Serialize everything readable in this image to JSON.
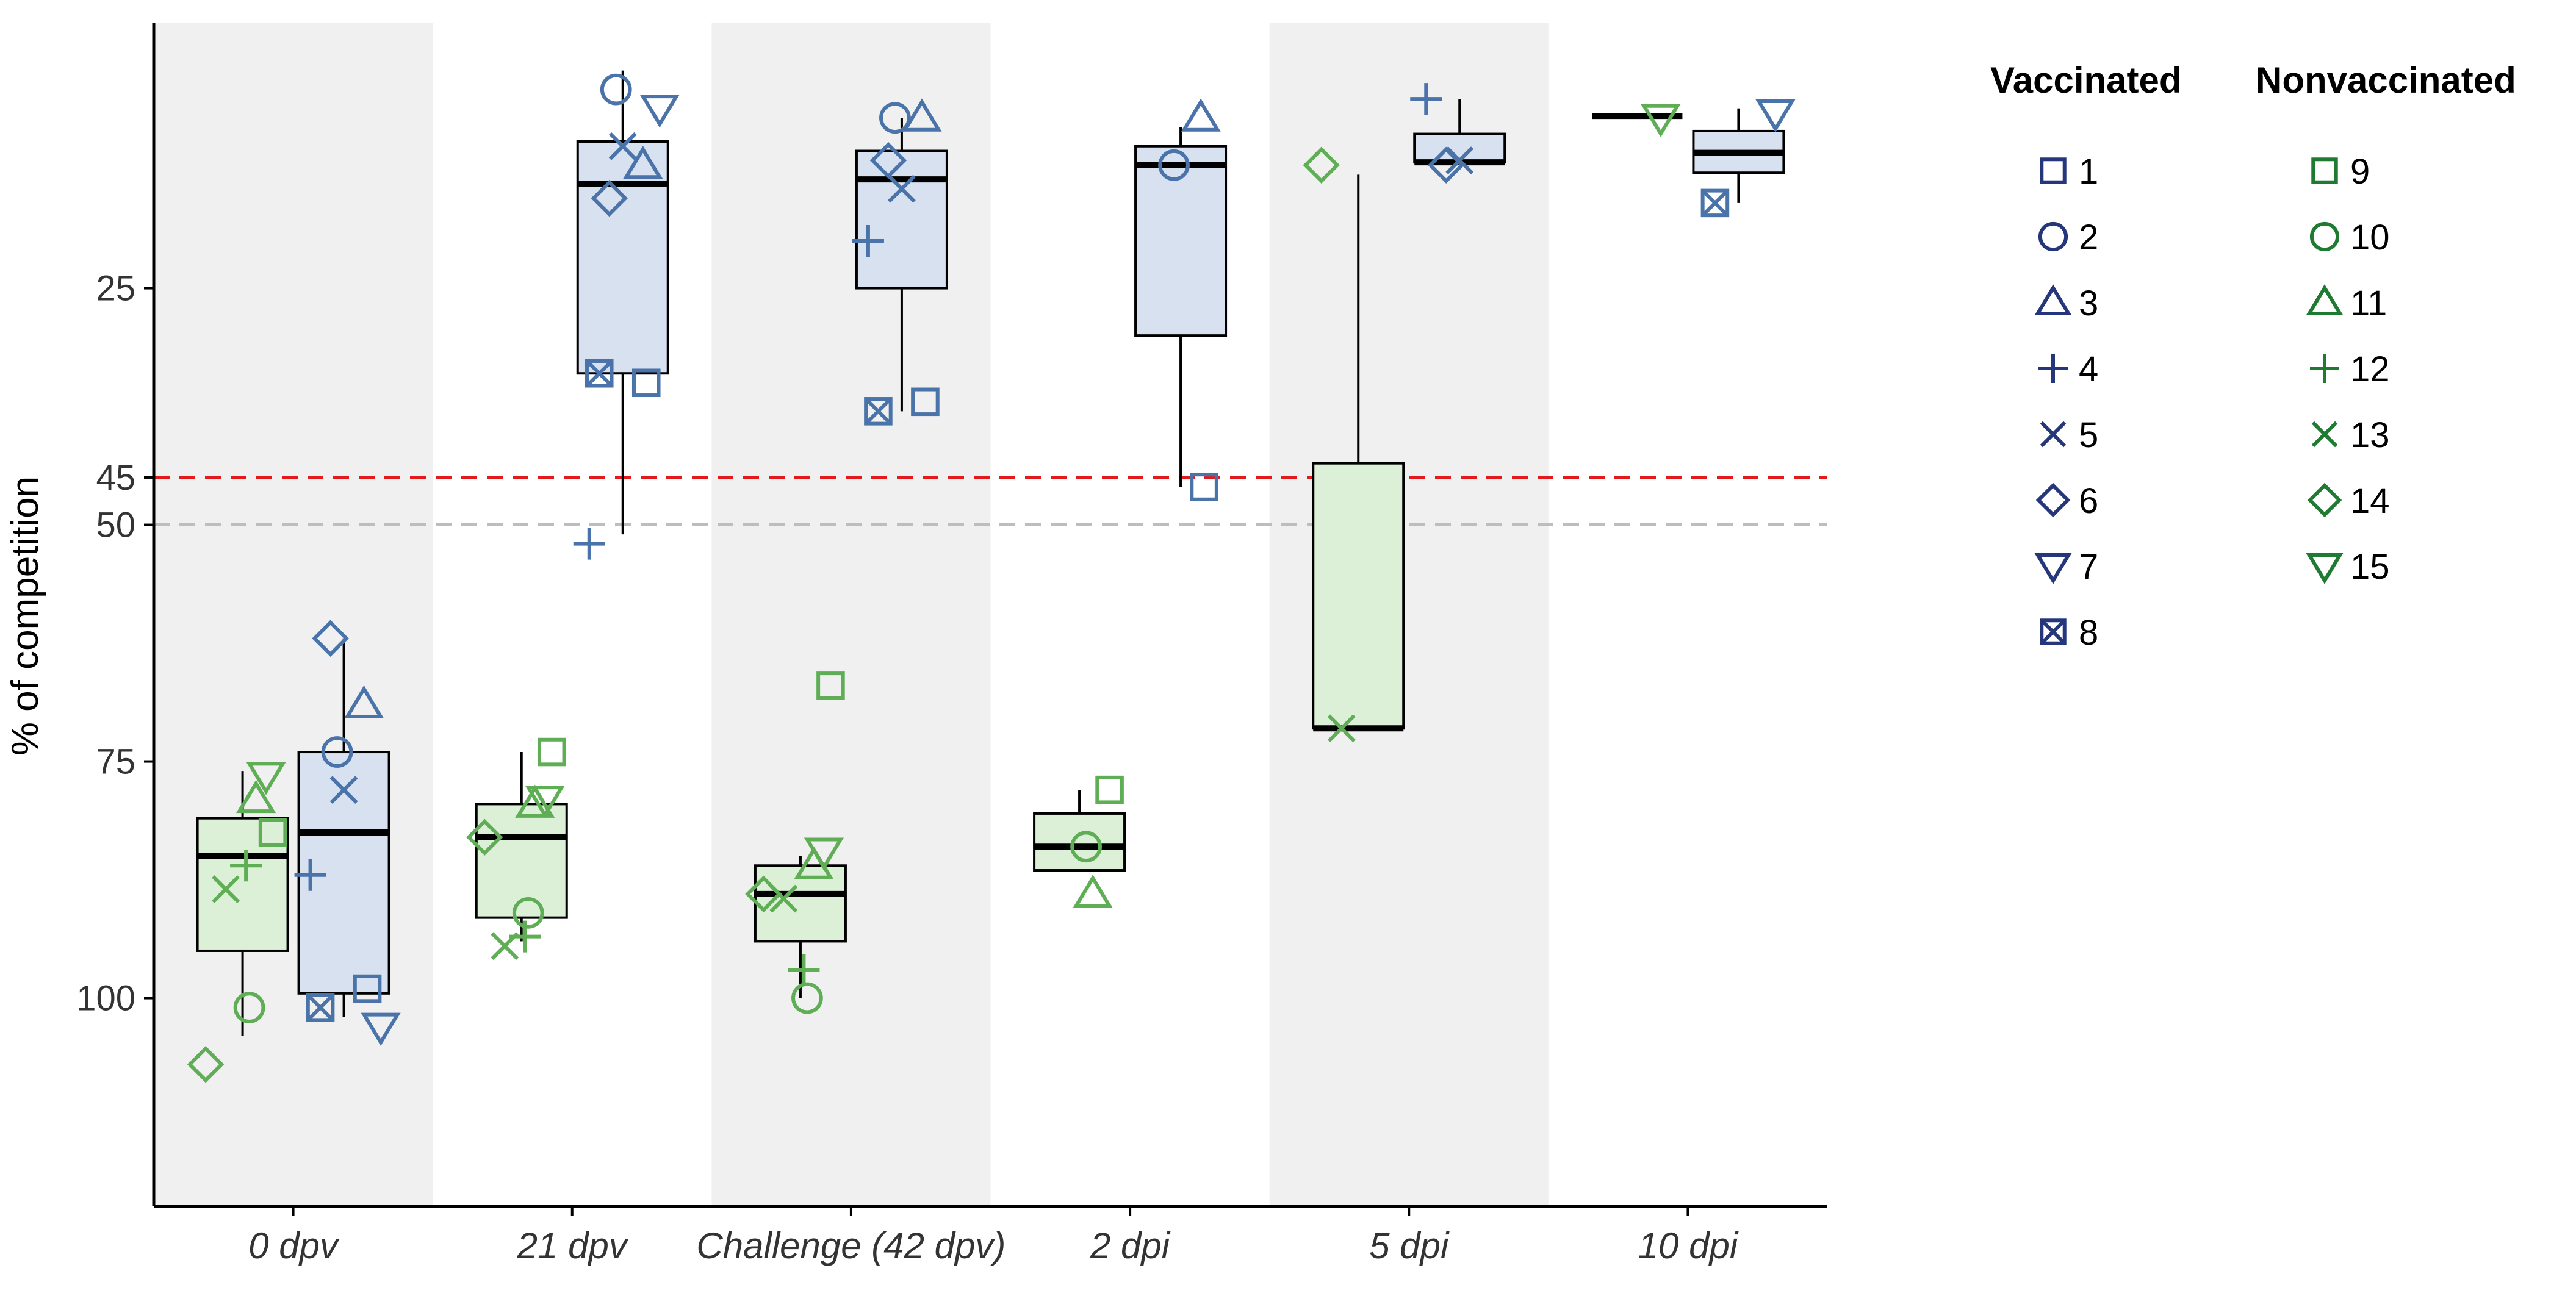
{
  "chart_data": {
    "type": "box",
    "title": "",
    "xlabel": "",
    "ylabel": "% of competition",
    "y_reversed": true,
    "ylim": [
      -3,
      122
    ],
    "yticks": [
      25,
      45,
      50,
      75,
      100
    ],
    "categories": [
      "0 dpv",
      "21 dpv",
      "Challenge (42 dpv)",
      "2 dpi",
      "5 dpi",
      "10 dpi"
    ],
    "shaded_categories": [
      0,
      2,
      4
    ],
    "reference_lines": [
      {
        "value": 45,
        "color": "#e31a1c",
        "style": "dashed"
      },
      {
        "value": 50,
        "color": "#bdbdbd",
        "style": "dashed"
      }
    ],
    "groups": [
      {
        "name": "Vaccinated",
        "color": "#4a73aa",
        "legend_color": "#25377a",
        "fill": "#d7e1ef"
      },
      {
        "name": "Nonvaccinated",
        "color": "#5fae55",
        "legend_color": "#1f7a32",
        "fill": "#dcefd7"
      }
    ],
    "legend": {
      "Vaccinated": [
        {
          "id": "1",
          "shape": "square"
        },
        {
          "id": "2",
          "shape": "circle"
        },
        {
          "id": "3",
          "shape": "triangle-up"
        },
        {
          "id": "4",
          "shape": "plus"
        },
        {
          "id": "5",
          "shape": "cross"
        },
        {
          "id": "6",
          "shape": "diamond"
        },
        {
          "id": "7",
          "shape": "triangle-down"
        },
        {
          "id": "8",
          "shape": "square-cross"
        }
      ],
      "Nonvaccinated": [
        {
          "id": "9",
          "shape": "square"
        },
        {
          "id": "10",
          "shape": "circle"
        },
        {
          "id": "11",
          "shape": "triangle-up"
        },
        {
          "id": "12",
          "shape": "plus"
        },
        {
          "id": "13",
          "shape": "cross"
        },
        {
          "id": "14",
          "shape": "diamond"
        },
        {
          "id": "15",
          "shape": "triangle-down"
        }
      ]
    },
    "boxes": [
      {
        "category": "0 dpv",
        "group": "Nonvaccinated",
        "q1": 81,
        "median": 85,
        "q3": 95,
        "whisker_low": 76,
        "whisker_high": 104
      },
      {
        "category": "0 dpv",
        "group": "Vaccinated",
        "q1": 74,
        "median": 82.5,
        "q3": 99.5,
        "whisker_low": 62,
        "whisker_high": 102
      },
      {
        "category": "21 dpv",
        "group": "Nonvaccinated",
        "q1": 79.5,
        "median": 83,
        "q3": 91.5,
        "whisker_low": 74,
        "whisker_high": 94
      },
      {
        "category": "21 dpv",
        "group": "Vaccinated",
        "q1": 9.5,
        "median": 14,
        "q3": 34,
        "whisker_low": 2,
        "whisker_high": 51
      },
      {
        "category": "Challenge (42 dpv)",
        "group": "Nonvaccinated",
        "q1": 86,
        "median": 89,
        "q3": 94,
        "whisker_low": 85,
        "whisker_high": 100
      },
      {
        "category": "Challenge (42 dpv)",
        "group": "Vaccinated",
        "q1": 10.5,
        "median": 13.5,
        "q3": 25,
        "whisker_low": 7,
        "whisker_high": 38
      },
      {
        "category": "2 dpi",
        "group": "Nonvaccinated",
        "q1": 80.5,
        "median": 84,
        "q3": 86.5,
        "whisker_low": 78,
        "whisker_high": 86.5
      },
      {
        "category": "2 dpi",
        "group": "Vaccinated",
        "q1": 10,
        "median": 12,
        "q3": 30,
        "whisker_low": 8,
        "whisker_high": 46
      },
      {
        "category": "5 dpi",
        "group": "Nonvaccinated",
        "q1": 43.5,
        "median": 71.5,
        "q3": 71.5,
        "whisker_low": 13,
        "whisker_high": 71.5
      },
      {
        "category": "5 dpi",
        "group": "Vaccinated",
        "q1": 8.7,
        "median": 11.7,
        "q3": 11.7,
        "whisker_low": 5,
        "whisker_high": 11.7
      },
      {
        "category": "10 dpi",
        "group": "Nonvaccinated",
        "q1": 6.8,
        "median": 6.8,
        "q3": 6.8,
        "whisker_low": 6.8,
        "whisker_high": 6.8
      },
      {
        "category": "10 dpi",
        "group": "Vaccinated",
        "q1": 8.4,
        "median": 10.7,
        "q3": 12.8,
        "whisker_low": 6,
        "whisker_high": 16
      }
    ],
    "points": [
      {
        "category": "0 dpv",
        "id": "9",
        "y": 82.5
      },
      {
        "category": "0 dpv",
        "id": "10",
        "y": 101
      },
      {
        "category": "0 dpv",
        "id": "11",
        "y": 79
      },
      {
        "category": "0 dpv",
        "id": "12",
        "y": 86
      },
      {
        "category": "0 dpv",
        "id": "13",
        "y": 88.5
      },
      {
        "category": "0 dpv",
        "id": "14",
        "y": 107
      },
      {
        "category": "0 dpv",
        "id": "15",
        "y": 76.5
      },
      {
        "category": "0 dpv",
        "id": "1",
        "y": 99
      },
      {
        "category": "0 dpv",
        "id": "2",
        "y": 74
      },
      {
        "category": "0 dpv",
        "id": "3",
        "y": 69
      },
      {
        "category": "0 dpv",
        "id": "4",
        "y": 87
      },
      {
        "category": "0 dpv",
        "id": "5",
        "y": 78
      },
      {
        "category": "0 dpv",
        "id": "6",
        "y": 62
      },
      {
        "category": "0 dpv",
        "id": "7",
        "y": 103
      },
      {
        "category": "0 dpv",
        "id": "8",
        "y": 101
      },
      {
        "category": "21 dpv",
        "id": "9",
        "y": 74
      },
      {
        "category": "21 dpv",
        "id": "10",
        "y": 91
      },
      {
        "category": "21 dpv",
        "id": "11",
        "y": 79.5
      },
      {
        "category": "21 dpv",
        "id": "12",
        "y": 93.5
      },
      {
        "category": "21 dpv",
        "id": "13",
        "y": 94.5
      },
      {
        "category": "21 dpv",
        "id": "14",
        "y": 83
      },
      {
        "category": "21 dpv",
        "id": "15",
        "y": 79
      },
      {
        "category": "21 dpv",
        "id": "1",
        "y": 35
      },
      {
        "category": "21 dpv",
        "id": "2",
        "y": 4
      },
      {
        "category": "21 dpv",
        "id": "3",
        "y": 12
      },
      {
        "category": "21 dpv",
        "id": "4",
        "y": 52
      },
      {
        "category": "21 dpv",
        "id": "5",
        "y": 10
      },
      {
        "category": "21 dpv",
        "id": "6",
        "y": 15.5
      },
      {
        "category": "21 dpv",
        "id": "7",
        "y": 6
      },
      {
        "category": "21 dpv",
        "id": "8",
        "y": 34
      },
      {
        "category": "Challenge (42 dpv)",
        "id": "9",
        "y": 67
      },
      {
        "category": "Challenge (42 dpv)",
        "id": "10",
        "y": 100
      },
      {
        "category": "Challenge (42 dpv)",
        "id": "11",
        "y": 86
      },
      {
        "category": "Challenge (42 dpv)",
        "id": "12",
        "y": 97
      },
      {
        "category": "Challenge (42 dpv)",
        "id": "13",
        "y": 89.5
      },
      {
        "category": "Challenge (42 dpv)",
        "id": "14",
        "y": 89
      },
      {
        "category": "Challenge (42 dpv)",
        "id": "15",
        "y": 84.5
      },
      {
        "category": "Challenge (42 dpv)",
        "id": "1",
        "y": 37
      },
      {
        "category": "Challenge (42 dpv)",
        "id": "2",
        "y": 7
      },
      {
        "category": "Challenge (42 dpv)",
        "id": "3",
        "y": 7
      },
      {
        "category": "Challenge (42 dpv)",
        "id": "4",
        "y": 20
      },
      {
        "category": "Challenge (42 dpv)",
        "id": "5",
        "y": 14.5
      },
      {
        "category": "Challenge (42 dpv)",
        "id": "6",
        "y": 11.5
      },
      {
        "category": "Challenge (42 dpv)",
        "id": "8",
        "y": 38
      },
      {
        "category": "2 dpi",
        "id": "9",
        "y": 78
      },
      {
        "category": "2 dpi",
        "id": "10",
        "y": 84
      },
      {
        "category": "2 dpi",
        "id": "11",
        "y": 89
      },
      {
        "category": "2 dpi",
        "id": "1",
        "y": 46
      },
      {
        "category": "2 dpi",
        "id": "2",
        "y": 12
      },
      {
        "category": "2 dpi",
        "id": "3",
        "y": 7
      },
      {
        "category": "5 dpi",
        "id": "13",
        "y": 71.5
      },
      {
        "category": "5 dpi",
        "id": "14",
        "y": 12
      },
      {
        "category": "5 dpi",
        "id": "4",
        "y": 5
      },
      {
        "category": "5 dpi",
        "id": "5",
        "y": 11.5
      },
      {
        "category": "5 dpi",
        "id": "6",
        "y": 12
      },
      {
        "category": "10 dpi",
        "id": "15",
        "y": 7
      },
      {
        "category": "10 dpi",
        "id": "7",
        "y": 6.5
      },
      {
        "category": "10 dpi",
        "id": "8",
        "y": 16
      }
    ]
  }
}
